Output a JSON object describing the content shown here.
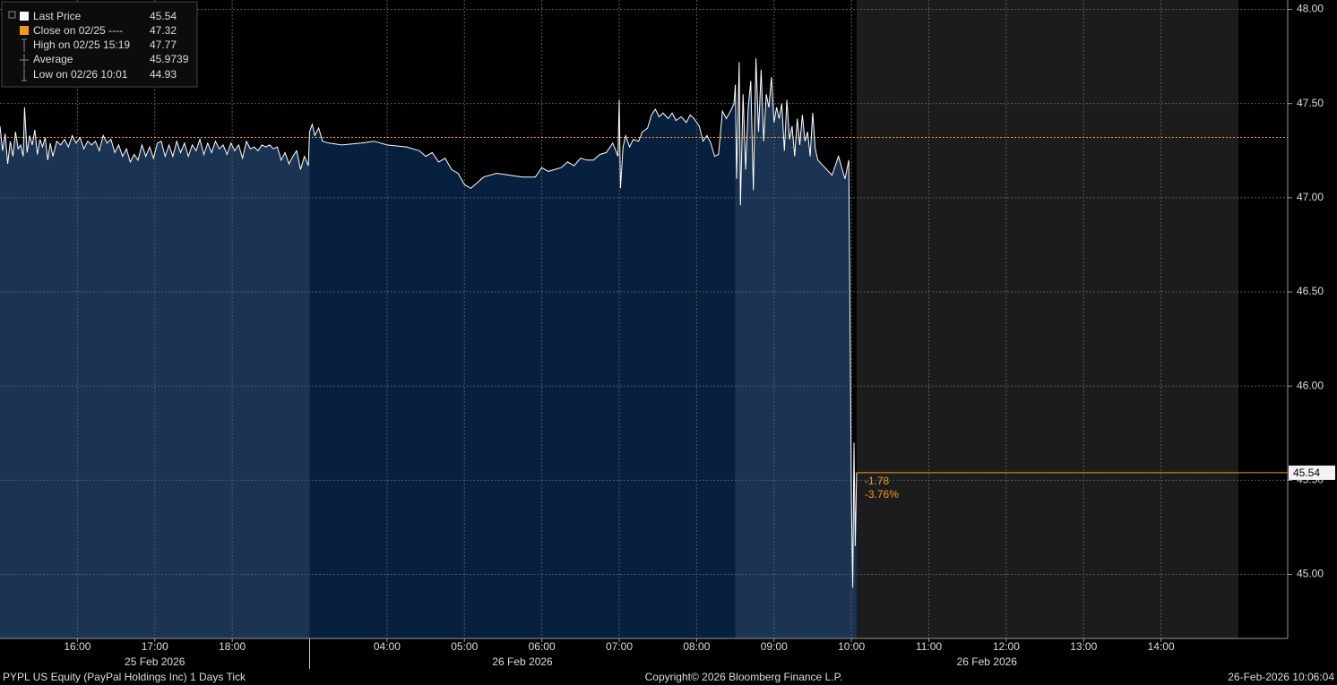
{
  "chart_data": {
    "type": "line",
    "ylim": [
      44.66,
      48.05
    ],
    "yticks": [
      {
        "value": 45,
        "label": "45.00"
      },
      {
        "value": 45.5,
        "label": "45.50"
      },
      {
        "value": 46,
        "label": "46.00"
      },
      {
        "value": 46.5,
        "label": "46.50"
      },
      {
        "value": 47,
        "label": "47.00"
      },
      {
        "value": 47.5,
        "label": "47.50"
      },
      {
        "value": 48,
        "label": "48.00"
      }
    ],
    "grid": true,
    "sessions": [
      {
        "label": "25 Feb 2026",
        "xlim": [
          "15:00",
          "19:00"
        ],
        "xticks": [
          "16:00",
          "17:00",
          "18:00"
        ],
        "fill": "#1b3453"
      },
      {
        "label": "26 Feb 2026",
        "xlim": [
          "03:00",
          "08:30"
        ],
        "xticks": [
          "04:00",
          "05:00",
          "06:00",
          "07:00",
          "08:00"
        ],
        "fill": "#06203e"
      },
      {
        "label": "26 Feb 2026",
        "xlim": [
          "08:30",
          "15:00"
        ],
        "xticks": [
          "09:00",
          "10:00",
          "11:00",
          "12:00",
          "13:00",
          "14:00"
        ],
        "fill": "#1b3453"
      }
    ],
    "series": [
      {
        "name": "Last Price",
        "color": "#ffffff",
        "x": [
          "15:00",
          "15:02",
          "15:04",
          "15:06",
          "15:08",
          "15:10",
          "15:12",
          "15:14",
          "15:16",
          "15:18",
          "15:19",
          "15:21",
          "15:23",
          "15:25",
          "15:27",
          "15:29",
          "15:31",
          "15:33",
          "15:35",
          "15:37",
          "15:39",
          "15:41",
          "15:44",
          "15:47",
          "15:50",
          "15:53",
          "15:56",
          "15:59",
          "16:02",
          "16:05",
          "16:08",
          "16:11",
          "16:14",
          "16:17",
          "16:20",
          "16:23",
          "16:26",
          "16:29",
          "16:32",
          "16:35",
          "16:38",
          "16:41",
          "16:44",
          "16:47",
          "16:50",
          "16:53",
          "16:56",
          "16:59",
          "17:02",
          "17:05",
          "17:08",
          "17:11",
          "17:14",
          "17:17",
          "17:20",
          "17:23",
          "17:26",
          "17:29",
          "17:32",
          "17:35",
          "17:38",
          "17:41",
          "17:44",
          "17:47",
          "17:50",
          "17:53",
          "17:56",
          "17:59",
          "18:02",
          "18:05",
          "18:08",
          "18:11",
          "18:14",
          "18:17",
          "18:20",
          "18:23",
          "18:26",
          "18:29",
          "18:32",
          "18:35",
          "18:38",
          "18:41",
          "18:44",
          "18:47",
          "18:50",
          "18:53",
          "18:56",
          "18:59",
          "03:00",
          "03:02",
          "03:04",
          "03:07",
          "03:10",
          "03:15",
          "03:25",
          "03:40",
          "03:50",
          "04:00",
          "04:15",
          "04:25",
          "04:30",
          "04:35",
          "04:40",
          "04:45",
          "04:50",
          "04:55",
          "05:00",
          "05:05",
          "05:10",
          "05:15",
          "05:25",
          "05:35",
          "05:45",
          "05:55",
          "06:00",
          "06:05",
          "06:15",
          "06:20",
          "06:25",
          "06:30",
          "06:35",
          "06:40",
          "06:45",
          "06:50",
          "06:55",
          "06:59",
          "07:00",
          "07:01",
          "07:03",
          "07:05",
          "07:08",
          "07:11",
          "07:15",
          "07:18",
          "07:22",
          "07:25",
          "07:28",
          "07:31",
          "07:34",
          "07:38",
          "07:41",
          "07:44",
          "07:48",
          "07:52",
          "07:55",
          "07:58",
          "08:02",
          "08:05",
          "08:08",
          "08:11",
          "08:14",
          "08:17",
          "08:20",
          "08:23",
          "08:27",
          "08:29",
          "08:30",
          "08:31",
          "08:33",
          "08:34",
          "08:36",
          "08:38",
          "08:40",
          "08:42",
          "08:44",
          "08:46",
          "08:48",
          "08:50",
          "08:52",
          "08:54",
          "08:56",
          "08:58",
          "09:00",
          "09:02",
          "09:04",
          "09:06",
          "09:08",
          "09:10",
          "09:12",
          "09:14",
          "09:16",
          "09:18",
          "09:20",
          "09:22",
          "09:24",
          "09:26",
          "09:28",
          "09:30",
          "09:32",
          "09:34",
          "09:45",
          "09:50",
          "09:55",
          "09:58",
          "10:00",
          "10:01",
          "10:02",
          "10:03",
          "10:04"
        ],
        "values": [
          47.38,
          47.25,
          47.34,
          47.18,
          47.3,
          47.22,
          47.35,
          47.26,
          47.28,
          47.22,
          47.48,
          47.24,
          47.33,
          47.28,
          47.36,
          47.23,
          47.31,
          47.27,
          47.32,
          47.2,
          47.29,
          47.22,
          47.3,
          47.28,
          47.31,
          47.27,
          47.33,
          47.29,
          47.32,
          47.26,
          47.3,
          47.28,
          47.3,
          47.25,
          47.33,
          47.29,
          47.31,
          47.24,
          47.28,
          47.22,
          47.26,
          47.19,
          47.23,
          47.2,
          47.28,
          47.22,
          47.27,
          47.21,
          47.29,
          47.3,
          47.22,
          47.28,
          47.22,
          47.3,
          47.24,
          47.29,
          47.22,
          47.28,
          47.25,
          47.31,
          47.23,
          47.29,
          47.24,
          47.3,
          47.26,
          47.28,
          47.23,
          47.29,
          47.25,
          47.28,
          47.21,
          47.3,
          47.26,
          47.27,
          47.25,
          47.28,
          47.27,
          47.28,
          47.26,
          47.27,
          47.2,
          47.24,
          47.18,
          47.22,
          47.25,
          47.15,
          47.22,
          47.17,
          47.35,
          47.39,
          47.33,
          47.37,
          47.3,
          47.29,
          47.28,
          47.29,
          47.3,
          47.28,
          47.27,
          47.25,
          47.22,
          47.24,
          47.19,
          47.21,
          47.15,
          47.13,
          47.07,
          47.05,
          47.08,
          47.11,
          47.13,
          47.12,
          47.11,
          47.11,
          47.16,
          47.14,
          47.16,
          47.19,
          47.17,
          47.21,
          47.2,
          47.2,
          47.23,
          47.24,
          47.29,
          47.22,
          47.52,
          47.05,
          47.27,
          47.33,
          47.27,
          47.31,
          47.3,
          47.35,
          47.37,
          47.44,
          47.47,
          47.43,
          47.45,
          47.42,
          47.45,
          47.41,
          47.43,
          47.4,
          47.44,
          47.42,
          47.38,
          47.3,
          47.33,
          47.29,
          47.22,
          47.23,
          47.46,
          47.42,
          47.47,
          47.5,
          47.6,
          47.1,
          47.72,
          46.96,
          47.55,
          47.15,
          47.48,
          47.62,
          47.04,
          47.74,
          47.35,
          47.68,
          47.3,
          47.55,
          47.48,
          47.64,
          47.4,
          47.48,
          47.42,
          47.5,
          47.25,
          47.52,
          47.31,
          47.38,
          47.22,
          47.42,
          47.28,
          47.44,
          47.3,
          47.35,
          47.22,
          47.45,
          47.26,
          47.2,
          47.12,
          47.22,
          47.1,
          47.2,
          45.4,
          44.93,
          45.7,
          45.15,
          45.54
        ]
      }
    ],
    "legend": [
      {
        "label": "Last Price",
        "value": 45.54,
        "color": "#ffffff"
      },
      {
        "label": "Close on 02/25 ----",
        "value": 47.32,
        "color": "#f39a1e"
      },
      {
        "label": "High on 02/25 15:19",
        "value": 47.77
      },
      {
        "label": "Average",
        "value": 45.9739
      },
      {
        "label": "Low on 02/26 10:01",
        "value": 44.93
      }
    ],
    "annotations": [
      "-1.78",
      "-3.76%"
    ],
    "footer": [
      "PYPL US Equity (PayPal Holdings Inc) 1 Days Tick",
      "Copyright© 2026 Bloomberg Finance L.P.",
      "26-Feb-2026 10:06:04"
    ]
  }
}
